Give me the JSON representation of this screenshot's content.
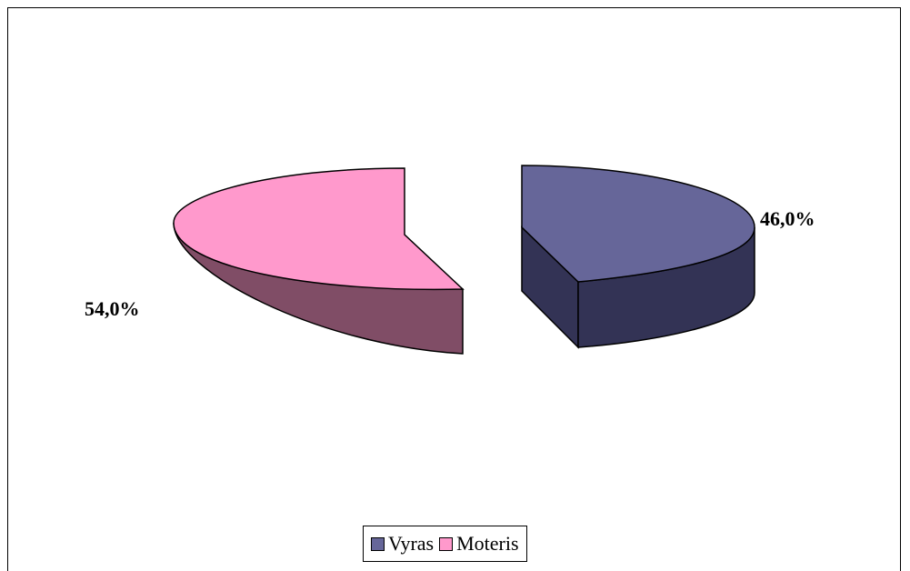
{
  "chart_data": {
    "type": "pie",
    "style": "3d-exploded",
    "categories": [
      "Vyras",
      "Moteris"
    ],
    "values": [
      46.0,
      54.0
    ],
    "data_labels": [
      "46,0%",
      "54,0%"
    ],
    "colors": {
      "Vyras": {
        "top": "#666699",
        "side": "#333355"
      },
      "Moteris": {
        "top": "#ff99cc",
        "side": "#804d66"
      }
    },
    "legend_position": "bottom"
  }
}
